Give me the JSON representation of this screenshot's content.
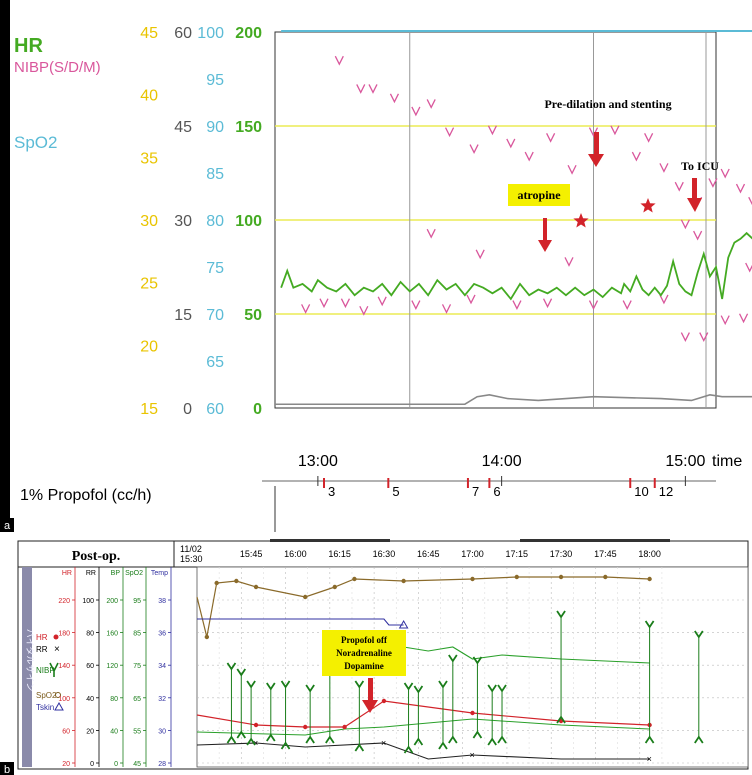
{
  "chart_data": [
    {
      "panel": "a",
      "type": "line",
      "legend": {
        "hr": "HR",
        "nibp": "NIBP(S/D/M)",
        "spo2": "SpO2"
      },
      "colors": {
        "hr": "#44aa22",
        "nibp": "#d9579c",
        "spo2": "#5bbbd6",
        "axis_yellow": "#e9c400",
        "axis_gray": "#555555",
        "annotation_arrow": "#d2232a",
        "callout_bg": "#f4f000",
        "grid_yellow": "#ecec55"
      },
      "y_axes": [
        {
          "name": "yellow",
          "ticks": [
            "45",
            "40",
            "35",
            "30",
            "25",
            "20",
            "15"
          ]
        },
        {
          "name": "gray",
          "ticks": [
            "60",
            "45",
            "30",
            "15",
            "0"
          ]
        },
        {
          "name": "spo2",
          "ticks": [
            "100",
            "95",
            "90",
            "85",
            "80",
            "75",
            "70",
            "65",
            "60"
          ]
        },
        {
          "name": "hr",
          "ticks": [
            "200",
            "150",
            "100",
            "50",
            "0"
          ]
        }
      ],
      "hr_axis_range": [
        0,
        200
      ],
      "x_axis": {
        "title": "time",
        "ticks": [
          "13:00",
          "14:00",
          "15:00"
        ],
        "range_minutes_from_1300": [
          -14,
          130
        ]
      },
      "propofol": {
        "label": "1% Propofol (cc/h)",
        "marks": [
          {
            "t": 2,
            "value": "3"
          },
          {
            "t": 23,
            "value": "5"
          },
          {
            "t": 49,
            "value": "7"
          },
          {
            "t": 56,
            "value": "6"
          },
          {
            "t": 102,
            "value": "10"
          },
          {
            "t": 110,
            "value": "12"
          }
        ]
      },
      "annotations": {
        "atropine": "atropine",
        "stenting": "Pre-dilation  and stenting",
        "icu": "To ICU"
      },
      "hr_series": {
        "name": "HR",
        "t": [
          -12,
          -10,
          -8,
          -5,
          -2,
          0,
          3,
          6,
          9,
          12,
          15,
          18,
          21,
          24,
          27,
          30,
          33,
          36,
          39,
          42,
          45,
          48,
          51,
          54,
          57,
          60,
          63,
          66,
          69,
          72,
          75,
          78,
          81,
          84,
          87,
          90,
          93,
          96,
          99,
          100,
          102,
          104,
          106,
          108,
          110,
          112,
          114,
          116,
          118,
          120,
          122,
          124,
          126,
          128,
          130,
          132,
          134,
          136,
          138,
          140,
          142,
          144,
          146,
          148,
          150,
          152,
          154,
          156,
          158,
          160,
          162,
          164,
          166,
          168,
          170,
          172,
          173,
          174,
          175,
          176,
          177
        ],
        "values": [
          64,
          73,
          64,
          66,
          62,
          68,
          64,
          62,
          66,
          60,
          64,
          62,
          66,
          60,
          67,
          62,
          66,
          60,
          68,
          63,
          66,
          60,
          66,
          64,
          61,
          64,
          58,
          66,
          60,
          63,
          61,
          64,
          60,
          64,
          60,
          63,
          59,
          64,
          61,
          66,
          62,
          70,
          63,
          60,
          64,
          60,
          65,
          78,
          66,
          62,
          60,
          72,
          82,
          70,
          75,
          58,
          80,
          88,
          90,
          93,
          90,
          92,
          88,
          96,
          94,
          100,
          92,
          98,
          104,
          96,
          92,
          94,
          100,
          107,
          102,
          97,
          104,
          96,
          100,
          30,
          0
        ]
      },
      "nibp_marks": [
        {
          "t": 7,
          "value": 185
        },
        {
          "t": 14,
          "value": 170
        },
        {
          "t": 18,
          "value": 170
        },
        {
          "t": 25,
          "value": 165
        },
        {
          "t": 32,
          "value": 158
        },
        {
          "t": 37,
          "value": 162
        },
        {
          "t": 43,
          "value": 147
        },
        {
          "t": 51,
          "value": 138
        },
        {
          "t": 57,
          "value": 148
        },
        {
          "t": 63,
          "value": 141
        },
        {
          "t": 69,
          "value": 134
        },
        {
          "t": 76,
          "value": 144
        },
        {
          "t": 83,
          "value": 127
        },
        {
          "t": 90,
          "value": 147
        },
        {
          "t": 97,
          "value": 148
        },
        {
          "t": 104,
          "value": 134
        },
        {
          "t": 108,
          "value": 144
        },
        {
          "t": 113,
          "value": 128
        },
        {
          "t": 118,
          "value": 118
        },
        {
          "t": 124,
          "value": 110
        },
        {
          "t": 129,
          "value": 120
        },
        {
          "t": 133,
          "value": 125
        },
        {
          "t": 138,
          "value": 117
        },
        {
          "t": 142,
          "value": 110
        },
        {
          "t": 148,
          "value": 118
        },
        {
          "t": 155,
          "value": 105
        },
        {
          "t": 160,
          "value": 120
        },
        {
          "t": 165,
          "value": 127
        },
        {
          "t": 170,
          "value": 135
        },
        {
          "t": 176,
          "value": 130
        },
        {
          "t": 37,
          "value": 93
        },
        {
          "t": 53,
          "value": 82
        },
        {
          "t": 82,
          "value": 78
        },
        {
          "t": 120,
          "value": 98
        },
        {
          "t": 124,
          "value": 92
        },
        {
          "t": 141,
          "value": 75
        },
        {
          "t": 147,
          "value": 68
        },
        {
          "t": 163,
          "value": 81
        },
        {
          "t": 173,
          "value": 88
        },
        {
          "t": -4,
          "value": 53
        },
        {
          "t": 2,
          "value": 56
        },
        {
          "t": 9,
          "value": 56
        },
        {
          "t": 15,
          "value": 52
        },
        {
          "t": 21,
          "value": 57
        },
        {
          "t": 32,
          "value": 55
        },
        {
          "t": 42,
          "value": 53
        },
        {
          "t": 50,
          "value": 58
        },
        {
          "t": 65,
          "value": 55
        },
        {
          "t": 75,
          "value": 56
        },
        {
          "t": 90,
          "value": 55
        },
        {
          "t": 101,
          "value": 55
        },
        {
          "t": 113,
          "value": 58
        },
        {
          "t": 120,
          "value": 38
        },
        {
          "t": 126,
          "value": 38
        },
        {
          "t": 133,
          "value": 47
        },
        {
          "t": 139,
          "value": 48
        },
        {
          "t": 145,
          "value": 38
        },
        {
          "t": 155,
          "value": 55
        },
        {
          "t": 170,
          "value": 60
        },
        {
          "t": 176,
          "value": 58
        }
      ],
      "spo2_series": {
        "name": "SpO2",
        "value": 100
      },
      "gray_series": {
        "t": [
          -14,
          -4,
          48,
          52,
          56,
          62,
          72,
          90,
          112,
          122,
          128,
          132,
          160,
          166,
          172,
          175,
          177
        ],
        "values": [
          2,
          2,
          2,
          6,
          7,
          5,
          4,
          6,
          5,
          4,
          7,
          6,
          6,
          2,
          2,
          2,
          2
        ]
      }
    },
    {
      "panel": "b",
      "type": "line",
      "title": "Post-op.",
      "date": "11/02",
      "x_ticks": [
        "15:30",
        "15:45",
        "16:00",
        "16:15",
        "16:30",
        "16:45",
        "17:00",
        "17:15",
        "17:30",
        "17:45",
        "18:00"
      ],
      "axis_headers": [
        "HR",
        "RR",
        "BP",
        "SpO2",
        "Temp"
      ],
      "axes": {
        "hr": [
          "220",
          "180",
          "140",
          "100",
          "60",
          "20"
        ],
        "rr": [
          "100",
          "80",
          "60",
          "40",
          "20",
          "0"
        ],
        "bp": [
          "200",
          "160",
          "120",
          "80",
          "40",
          "0"
        ],
        "spo2": [
          "95",
          "85",
          "75",
          "65",
          "55",
          "45"
        ],
        "temp": [
          "38",
          "36",
          "34",
          "32",
          "30",
          "28"
        ]
      },
      "axis_ranges": {
        "hr": [
          20,
          220
        ],
        "rr": [
          0,
          100
        ],
        "bp": [
          0,
          200
        ],
        "spo2": [
          45,
          95
        ],
        "temp": [
          28,
          38
        ]
      },
      "legend": {
        "hr": "HR",
        "rr": "RR",
        "nibp": "NIBP",
        "spo2": "SpO2",
        "tskin": "Tskin"
      },
      "vertical_label": "バイタルサイン",
      "callout": [
        "Propofol off",
        "Noradrenaline",
        "Dopamine"
      ],
      "temp_series": {
        "name": "Temp",
        "t": [
          -2,
          0,
          2,
          6,
          10,
          20,
          26,
          30,
          40,
          54,
          63,
          72,
          81,
          90
        ],
        "values": [
          36.5,
          34.5,
          37.2,
          37.3,
          37,
          36.5,
          37,
          37.4,
          37.3,
          37.4,
          37.5,
          37.5,
          37.5,
          37.4
        ]
      },
      "tskin_series": {
        "name": "Tskin",
        "t": [
          -2,
          36,
          37,
          40
        ],
        "values": [
          35.4,
          35.4,
          35.1,
          35.1
        ]
      },
      "hr_series": {
        "name": "HR",
        "t": [
          -2,
          10,
          20,
          28,
          36,
          54,
          72,
          90
        ],
        "values": [
          72,
          62,
          60,
          60,
          86,
          74,
          66,
          62
        ]
      },
      "rr_series": {
        "name": "RR",
        "t": [
          -2,
          10,
          20,
          36,
          45,
          54,
          72,
          90
        ],
        "values": [
          11,
          12,
          10,
          12,
          4,
          6,
          4,
          4
        ]
      },
      "spo2_series": {
        "name": "SpO2",
        "t": [
          40,
          45,
          50,
          54,
          60,
          72,
          90
        ],
        "values": [
          75,
          74,
          75,
          72,
          73,
          72,
          71
        ]
      },
      "bp_series": {
        "name": "BP",
        "t": [
          -2,
          20,
          28,
          36,
          54,
          72,
          90
        ],
        "values": [
          35,
          32,
          38,
          40,
          48,
          42,
          38
        ]
      },
      "nibp_marks": [
        {
          "t": 5,
          "sys": 98,
          "dia": 30
        },
        {
          "t": 7,
          "sys": 92,
          "dia": 35
        },
        {
          "t": 9,
          "sys": 80,
          "dia": 28
        },
        {
          "t": 13,
          "sys": 78,
          "dia": 32
        },
        {
          "t": 16,
          "sys": 80,
          "dia": 24
        },
        {
          "t": 21,
          "sys": 76,
          "dia": 30
        },
        {
          "t": 25,
          "sys": 96,
          "dia": 30
        },
        {
          "t": 31,
          "sys": 80,
          "dia": 22
        },
        {
          "t": 41,
          "sys": 78,
          "dia": 20
        },
        {
          "t": 43,
          "sys": 75,
          "dia": 28
        },
        {
          "t": 48,
          "sys": 80,
          "dia": 24
        },
        {
          "t": 50,
          "sys": 106,
          "dia": 30
        },
        {
          "t": 55,
          "sys": 104,
          "dia": 35
        },
        {
          "t": 58,
          "sys": 76,
          "dia": 28
        },
        {
          "t": 60,
          "sys": 76,
          "dia": 30
        },
        {
          "t": 72,
          "sys": 150,
          "dia": 50
        },
        {
          "t": 90,
          "sys": 140,
          "dia": 30
        },
        {
          "t": 100,
          "sys": 130,
          "dia": 30
        }
      ]
    }
  ],
  "labels": {
    "panel_a": "a",
    "panel_b": "b"
  }
}
